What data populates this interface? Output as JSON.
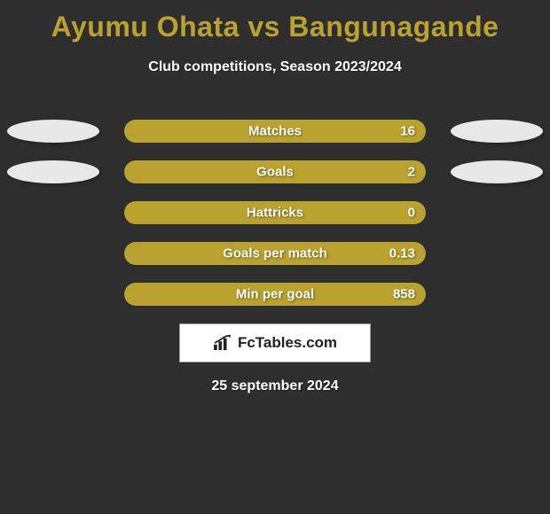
{
  "background_color": "#2e2e2e",
  "title": {
    "text": "Ayumu Ohata vs Bangunagande",
    "color": "#b9a22e",
    "fontsize": 32
  },
  "subtitle": {
    "text": "Club competitions, Season 2023/2024",
    "color": "#ffffff",
    "fontsize": 16
  },
  "avatars": {
    "left_color": "#e8e8e8",
    "right_color": "#e8e8e8",
    "show_on_first_two_rows": true
  },
  "bar_style": {
    "track_color": "#5a5a5a",
    "fill_color": "#b9a22e",
    "label_color": "#ffffff",
    "value_color": "#ffffff",
    "fontsize": 15
  },
  "stats": [
    {
      "label": "Matches",
      "value": "16",
      "fill_pct": 100,
      "show_avatars": true
    },
    {
      "label": "Goals",
      "value": "2",
      "fill_pct": 100,
      "show_avatars": true
    },
    {
      "label": "Hattricks",
      "value": "0",
      "fill_pct": 100,
      "show_avatars": false
    },
    {
      "label": "Goals per match",
      "value": "0.13",
      "fill_pct": 100,
      "show_avatars": false
    },
    {
      "label": "Min per goal",
      "value": "858",
      "fill_pct": 100,
      "show_avatars": false
    }
  ],
  "brand": {
    "text": "FcTables.com",
    "box_bg": "#ffffff",
    "box_border": "#9e9e9e",
    "text_color": "#222222",
    "icon_color": "#222222"
  },
  "date": {
    "text": "25 september 2024",
    "color": "#ffffff",
    "fontsize": 16
  }
}
